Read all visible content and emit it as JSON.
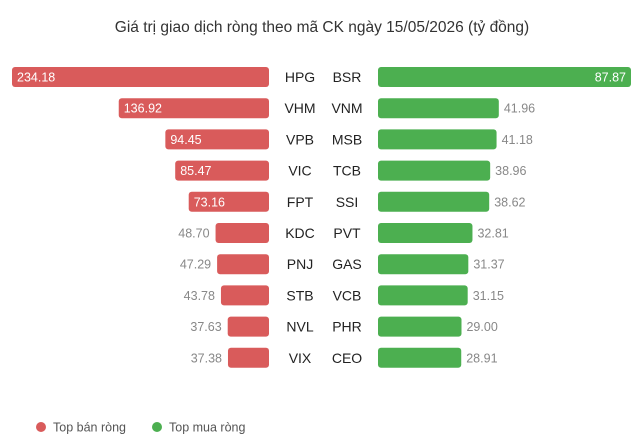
{
  "chart_data": {
    "type": "bar",
    "title": "Giá trị giao dịch ròng theo mã CK ngày 15/05/2026 (tỷ đồng)",
    "series": [
      {
        "name": "Top bán ròng",
        "color": "#d95b5b",
        "categories": [
          "HPG",
          "VHM",
          "VPB",
          "VIC",
          "FPT",
          "KDC",
          "PNJ",
          "STB",
          "NVL",
          "VIX"
        ],
        "values": [
          234.18,
          136.92,
          94.45,
          85.47,
          73.16,
          48.7,
          47.29,
          43.78,
          37.63,
          37.38
        ],
        "labels": [
          "234.18",
          "136.92",
          "94.45",
          "85.47",
          "73.16",
          "48.70",
          "47.29",
          "43.78",
          "37.63",
          "37.38"
        ]
      },
      {
        "name": "Top mua ròng",
        "color": "#4caf50",
        "categories": [
          "BSR",
          "VNM",
          "MSB",
          "TCB",
          "SSI",
          "PVT",
          "GAS",
          "VCB",
          "PHR",
          "CEO"
        ],
        "values": [
          87.87,
          41.96,
          41.18,
          38.96,
          38.62,
          32.81,
          31.37,
          31.15,
          29.0,
          28.91
        ],
        "labels": [
          "87.87",
          "41.96",
          "41.18",
          "38.96",
          "38.62",
          "32.81",
          "31.37",
          "31.15",
          "29.00",
          "28.91"
        ]
      }
    ],
    "legend": [
      "Top bán ròng",
      "Top mua ròng"
    ],
    "legend_position": "bottom-left",
    "grid": false
  }
}
